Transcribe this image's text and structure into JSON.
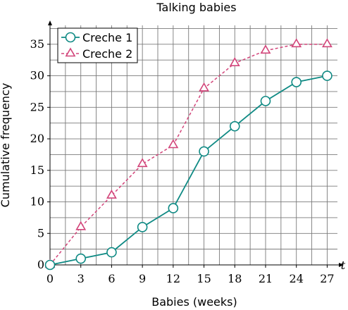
{
  "chart_data": {
    "type": "line",
    "title": "Talking babies",
    "xlabel": "Babies (weeks)",
    "ylabel": "Cumulative frequency",
    "x_axis_var": "t",
    "xlim": [
      0,
      28
    ],
    "ylim": [
      0,
      38
    ],
    "xticks": [
      0,
      3,
      6,
      9,
      12,
      15,
      18,
      21,
      24,
      27
    ],
    "yticks": [
      0,
      5,
      10,
      15,
      20,
      25,
      30,
      35
    ],
    "grid": true,
    "legend_position": "top-left",
    "x": [
      0,
      3,
      6,
      9,
      12,
      15,
      18,
      21,
      24,
      27
    ],
    "series": [
      {
        "name": "Creche 1",
        "marker": "circle",
        "line_style": "solid",
        "color": "#0f8a84",
        "values": [
          0,
          1,
          2,
          6,
          9,
          18,
          22,
          26,
          29,
          30
        ]
      },
      {
        "name": "Creche 2",
        "marker": "triangle",
        "line_style": "dashed",
        "color": "#d2457a",
        "values": [
          0,
          6,
          11,
          16,
          19,
          28,
          32,
          34,
          35,
          35
        ]
      }
    ]
  }
}
